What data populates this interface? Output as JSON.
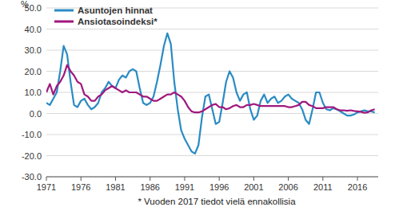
{
  "chart_data": {
    "type": "line",
    "y_label": "%",
    "footnote": "* Vuoden 2017 tiedot vielä ennakollisia",
    "x": [
      1971,
      1971.5,
      1972,
      1972.5,
      1973,
      1973.5,
      1974,
      1974.5,
      1975,
      1975.5,
      1976,
      1976.5,
      1977,
      1977.5,
      1978,
      1978.5,
      1979,
      1979.5,
      1980,
      1980.5,
      1981,
      1981.5,
      1982,
      1982.5,
      1983,
      1983.5,
      1984,
      1984.5,
      1985,
      1985.5,
      1986,
      1986.5,
      1987,
      1987.5,
      1988,
      1988.5,
      1989,
      1989.5,
      1990,
      1990.5,
      1991,
      1991.5,
      1992,
      1992.5,
      1993,
      1993.5,
      1994,
      1994.5,
      1995,
      1995.5,
      1996,
      1996.5,
      1997,
      1997.5,
      1998,
      1998.5,
      1999,
      1999.5,
      2000,
      2000.5,
      2001,
      2001.5,
      2002,
      2002.5,
      2003,
      2003.5,
      2004,
      2004.5,
      2005,
      2005.5,
      2006,
      2006.5,
      2007,
      2007.5,
      2008,
      2008.5,
      2009,
      2009.5,
      2010,
      2010.5,
      2011,
      2011.5,
      2012,
      2012.5,
      2013,
      2013.5,
      2014,
      2014.5,
      2015,
      2015.5,
      2016,
      2016.5,
      2017,
      2017.5,
      2018,
      2018.5
    ],
    "series": [
      {
        "name": "Asuntojen hinnat",
        "color": "#2a8bc4",
        "values": [
          5,
          4,
          7,
          10,
          20,
          32,
          28,
          15,
          4,
          3,
          6,
          7,
          4,
          2,
          3,
          5,
          10,
          12,
          15,
          13,
          12,
          16,
          18,
          17,
          20,
          21,
          20,
          12,
          5,
          4,
          5,
          8,
          15,
          23,
          32,
          38,
          33,
          15,
          2,
          -8,
          -12,
          -15,
          -18,
          -19,
          -15,
          -2,
          8,
          9,
          2,
          -5,
          -4,
          5,
          15,
          20,
          17,
          10,
          6,
          9,
          10,
          2,
          -3,
          -1,
          6,
          9,
          5,
          7,
          8,
          5,
          6,
          8,
          9,
          7,
          6,
          5,
          2,
          -3,
          -5,
          2,
          10,
          10,
          5,
          2,
          1.5,
          2.5,
          2,
          1,
          0,
          -1,
          -1,
          -0.5,
          0.5,
          1,
          1.5,
          1,
          1,
          0.5
        ]
      },
      {
        "name": "Ansiotasoindeksi*",
        "color": "#a0187e",
        "values": [
          10,
          14,
          9,
          13,
          15,
          18,
          23,
          20,
          18,
          15,
          14,
          9,
          8,
          6,
          6,
          8,
          9,
          11,
          12,
          13,
          12,
          11,
          10,
          11,
          10,
          10,
          10,
          9,
          8,
          8,
          7,
          6,
          6,
          7,
          8,
          9,
          9,
          10,
          9,
          8,
          6,
          3,
          1,
          0.5,
          0.5,
          1,
          2,
          3,
          4,
          4.5,
          3,
          3,
          2,
          2.5,
          3.5,
          4,
          3,
          3,
          4,
          4,
          4.5,
          4,
          3.5,
          3.5,
          3.5,
          3.5,
          3.5,
          3.5,
          3.5,
          3.5,
          3,
          3,
          3.5,
          4,
          5.5,
          5.5,
          4,
          3.5,
          2.5,
          2.5,
          2.5,
          3,
          3,
          3,
          2,
          1.5,
          1.5,
          1.3,
          1.5,
          1.2,
          1,
          0.8,
          0.3,
          0.5,
          1.5,
          2
        ]
      }
    ],
    "xlim": [
      1971,
      2019
    ],
    "xticks": [
      1971,
      1976,
      1981,
      1986,
      1991,
      1996,
      2001,
      2006,
      2011,
      2016
    ],
    "ylim": [
      -30,
      50
    ],
    "yticks": [
      {
        "value": -30,
        "label": "-30.0"
      },
      {
        "value": -20,
        "label": "-20.0"
      },
      {
        "value": -10,
        "label": "-10.0"
      },
      {
        "value": 0,
        "label": "0.0"
      },
      {
        "value": 10,
        "label": "10.0"
      },
      {
        "value": 20,
        "label": "20.0"
      },
      {
        "value": 30,
        "label": "30.0"
      },
      {
        "value": 40,
        "label": "40.0"
      },
      {
        "value": 50,
        "label": "50.0"
      }
    ],
    "grid": true,
    "legend": "top-left"
  }
}
